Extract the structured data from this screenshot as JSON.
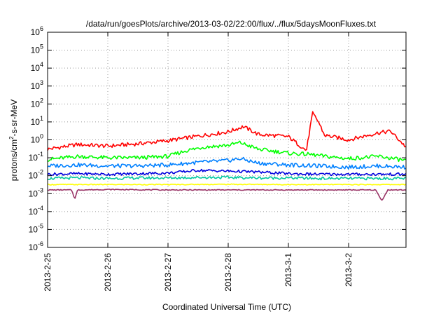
{
  "chart_data": {
    "type": "line",
    "title": "/data/run/goesPlots/archive/2013-03-02/22:00/flux/../flux/5daysMoonFluxes.txt",
    "xlabel": "Coordinated Universal Time (UTC)",
    "ylabel": {
      "prefix": "protons/cm",
      "sup": "2",
      "suffix": "-s-sr-MeV"
    },
    "x_ticks": [
      "2013-2-25",
      "2013-2-26",
      "2013-2-27",
      "2013-2-28",
      "2013-3-1",
      "2013-3-2"
    ],
    "x_range_days": [
      0,
      5.95
    ],
    "y_scale": "log",
    "y_ticks": [
      {
        "base": "10",
        "exp": "6"
      },
      {
        "base": "10",
        "exp": "5"
      },
      {
        "base": "10",
        "exp": "4"
      },
      {
        "base": "10",
        "exp": "3"
      },
      {
        "base": "10",
        "exp": "2"
      },
      {
        "base": "10",
        "exp": "1"
      },
      {
        "base": "10",
        "exp": "0"
      },
      {
        "base": "10",
        "exp": "-1"
      },
      {
        "base": "10",
        "exp": "-2"
      },
      {
        "base": "10",
        "exp": "-3"
      },
      {
        "base": "10",
        "exp": "-4"
      },
      {
        "base": "10",
        "exp": "-5"
      },
      {
        "base": "10",
        "exp": "-6"
      }
    ],
    "ylim": [
      1e-06,
      1000000.0
    ],
    "grid": true,
    "series": [
      {
        "color": "#ff0000",
        "points": [
          [
            0,
            0.3
          ],
          [
            0.5,
            0.55
          ],
          [
            1,
            0.45
          ],
          [
            1.5,
            0.6
          ],
          [
            2,
            0.9
          ],
          [
            2.5,
            1.6
          ],
          [
            3,
            2.8
          ],
          [
            3.25,
            5.5
          ],
          [
            3.5,
            2
          ],
          [
            4,
            1.5
          ],
          [
            4.3,
            0.25
          ],
          [
            4.4,
            30
          ],
          [
            4.5,
            10
          ],
          [
            4.6,
            1.8
          ],
          [
            5,
            1
          ],
          [
            5.5,
            2.5
          ],
          [
            5.7,
            3
          ],
          [
            5.95,
            0.4
          ]
        ]
      },
      {
        "color": "#00ff00",
        "points": [
          [
            0,
            0.08
          ],
          [
            0.5,
            0.12
          ],
          [
            1,
            0.1
          ],
          [
            1.5,
            0.1
          ],
          [
            2,
            0.12
          ],
          [
            2.3,
            0.25
          ],
          [
            2.6,
            0.4
          ],
          [
            3,
            0.5
          ],
          [
            3.2,
            0.7
          ],
          [
            3.5,
            0.3
          ],
          [
            4,
            0.18
          ],
          [
            4.4,
            0.15
          ],
          [
            4.6,
            0.12
          ],
          [
            5,
            0.09
          ],
          [
            5.5,
            0.12
          ],
          [
            5.95,
            0.07
          ]
        ]
      },
      {
        "color": "#0080ff",
        "points": [
          [
            0,
            0.035
          ],
          [
            0.5,
            0.04
          ],
          [
            1,
            0.035
          ],
          [
            1.5,
            0.035
          ],
          [
            2,
            0.04
          ],
          [
            2.5,
            0.055
          ],
          [
            3,
            0.07
          ],
          [
            3.2,
            0.09
          ],
          [
            3.5,
            0.05
          ],
          [
            4,
            0.04
          ],
          [
            4.5,
            0.035
          ],
          [
            5,
            0.03
          ],
          [
            5.5,
            0.035
          ],
          [
            5.95,
            0.03
          ]
        ]
      },
      {
        "color": "#0000dd",
        "points": [
          [
            0,
            0.012
          ],
          [
            0.5,
            0.013
          ],
          [
            1,
            0.012
          ],
          [
            1.5,
            0.013
          ],
          [
            2,
            0.014
          ],
          [
            2.5,
            0.02
          ],
          [
            3,
            0.018
          ],
          [
            3.5,
            0.016
          ],
          [
            4,
            0.013
          ],
          [
            4.5,
            0.012
          ],
          [
            5,
            0.012
          ],
          [
            5.5,
            0.012
          ],
          [
            5.95,
            0.012
          ]
        ]
      },
      {
        "color": "#00c8a0",
        "points": [
          [
            0,
            0.007
          ],
          [
            0.5,
            0.0075
          ],
          [
            1,
            0.007
          ],
          [
            1.5,
            0.0075
          ],
          [
            2,
            0.0075
          ],
          [
            2.5,
            0.008
          ],
          [
            3,
            0.008
          ],
          [
            3.5,
            0.0075
          ],
          [
            4,
            0.0075
          ],
          [
            4.5,
            0.007
          ],
          [
            5,
            0.007
          ],
          [
            5.5,
            0.007
          ],
          [
            5.95,
            0.007
          ]
        ]
      },
      {
        "color": "#ffff00",
        "points": [
          [
            0,
            0.0032
          ],
          [
            1,
            0.0032
          ],
          [
            2,
            0.0032
          ],
          [
            3,
            0.0033
          ],
          [
            4,
            0.0032
          ],
          [
            5,
            0.0032
          ],
          [
            5.95,
            0.0032
          ]
        ]
      },
      {
        "color": "#993366",
        "points": [
          [
            0,
            0.0016
          ],
          [
            0.4,
            0.0016
          ],
          [
            0.45,
            0.0005
          ],
          [
            0.5,
            0.0016
          ],
          [
            1,
            0.0017
          ],
          [
            2,
            0.0016
          ],
          [
            3,
            0.0016
          ],
          [
            4,
            0.0016
          ],
          [
            5,
            0.0016
          ],
          [
            5.45,
            0.0016
          ],
          [
            5.55,
            0.0004
          ],
          [
            5.65,
            0.0016
          ],
          [
            5.95,
            0.0016
          ]
        ]
      }
    ]
  }
}
